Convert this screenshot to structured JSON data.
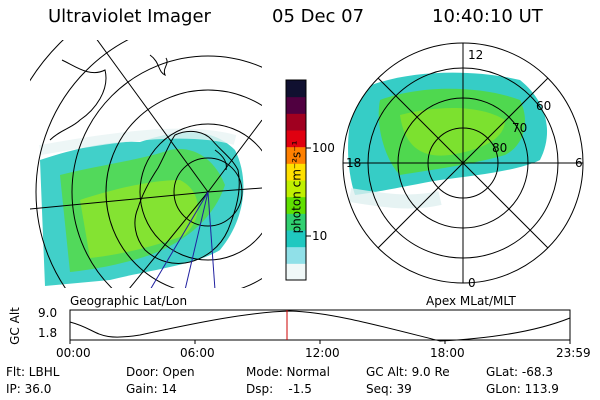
{
  "header": {
    "instrument": "Ultraviolet Imager",
    "date": "05 Dec 07",
    "time": "10:40:10 UT"
  },
  "left_map": {
    "label": "Geographic Lat/Lon"
  },
  "right_map": {
    "label": "Apex  MLat/MLT",
    "mlt_labels": [
      "12",
      "18",
      "6",
      "0"
    ],
    "mlat_labels": [
      "60",
      "70",
      "80"
    ]
  },
  "colorbar": {
    "unit_label": "photon cm⁻²s⁻¹",
    "ticks": [
      "100",
      "10"
    ],
    "colors": [
      "#101030",
      "#500040",
      "#a00020",
      "#e00010",
      "#ff8000",
      "#ffe000",
      "#c0f000",
      "#60e000",
      "#30d070",
      "#20c8c0",
      "#90e0e8",
      "#f0f8f8"
    ]
  },
  "alt_plot": {
    "axis_label": "GC Alt",
    "y_ticks": [
      "9.0",
      "1.8"
    ],
    "x_ticks": [
      "00:00",
      "06:00",
      "12:00",
      "18:00",
      "23:59"
    ],
    "current_marker_time": "10:40"
  },
  "status": {
    "row1": {
      "filter": "Flt: LBHL",
      "door": "Door: Open",
      "mode": "Mode: Normal",
      "gc_alt": "GC Alt: 9.0 Re",
      "glat": "GLat: -68.3"
    },
    "row2": {
      "ip": "IP: 36.0",
      "gain": "Gain: 14",
      "dsp": "Dsp:    -1.5",
      "seq": "Seq: 39",
      "glon": "GLon: 113.9"
    }
  },
  "colors": {
    "marker": "#cc0000",
    "meridian": "#2020a0"
  }
}
